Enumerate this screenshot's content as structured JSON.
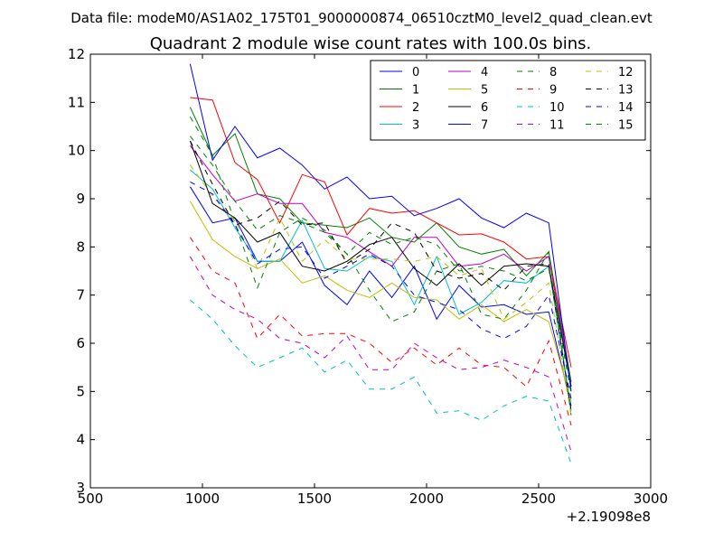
{
  "header": {
    "data_file": "Data file: modeM0/AS1A02_175T01_9000000874_06510cztM0_level2_quad_clean.evt"
  },
  "chart_data": {
    "type": "line",
    "title": "Quadrant 2 module wise count rates with 100.0s bins.",
    "xlabel": "",
    "ylabel": "",
    "xlim": [
      500,
      3000
    ],
    "ylim": [
      3,
      12
    ],
    "x_ticks": [
      500,
      1000,
      1500,
      2000,
      2500,
      3000
    ],
    "y_ticks": [
      3,
      4,
      5,
      6,
      7,
      8,
      9,
      10,
      11,
      12
    ],
    "x_tick_labels": [
      "500",
      "1000",
      "1500",
      "2000",
      "2500",
      "3000"
    ],
    "y_tick_labels": [
      "3",
      "4",
      "5",
      "6",
      "7",
      "8",
      "9",
      "10",
      "11",
      "12"
    ],
    "x_offset_label": "+2.19098e8",
    "grid": false,
    "legend_position": "top-right",
    "x": [
      945,
      1045,
      1145,
      1245,
      1345,
      1445,
      1545,
      1645,
      1745,
      1845,
      1945,
      2045,
      2145,
      2245,
      2345,
      2445,
      2545,
      2645
    ],
    "series": [
      {
        "name": "0",
        "color": "#0000ff",
        "dash": "solid",
        "values": [
          9.25,
          8.5,
          8.6,
          7.7,
          7.7,
          8.1,
          7.2,
          6.8,
          7.5,
          6.95,
          7.6,
          6.5,
          7.2,
          6.75,
          6.8,
          6.6,
          6.65,
          4.7
        ]
      },
      {
        "name": "1",
        "color": "#008000",
        "dash": "solid",
        "values": [
          10.9,
          9.9,
          10.35,
          9.1,
          9.0,
          8.5,
          8.45,
          8.4,
          8.6,
          8.2,
          8.1,
          8.5,
          8.0,
          7.85,
          7.95,
          7.4,
          7.9,
          5.2
        ]
      },
      {
        "name": "2",
        "color": "#ff0000",
        "dash": "solid",
        "values": [
          11.1,
          11.05,
          9.75,
          9.4,
          8.5,
          9.5,
          9.35,
          8.25,
          8.8,
          8.7,
          8.75,
          8.5,
          8.25,
          8.27,
          8.1,
          7.75,
          7.8,
          5.5
        ]
      },
      {
        "name": "3",
        "color": "#00bfbf",
        "dash": "solid",
        "values": [
          9.6,
          9.2,
          8.4,
          7.7,
          7.7,
          8.55,
          7.55,
          7.5,
          7.8,
          7.7,
          6.8,
          7.8,
          6.6,
          6.85,
          7.3,
          7.25,
          7.6,
          4.6
        ]
      },
      {
        "name": "4",
        "color": "#bf00bf",
        "dash": "solid",
        "values": [
          10.1,
          9.5,
          8.95,
          9.1,
          8.9,
          8.9,
          8.3,
          8.2,
          7.9,
          7.6,
          8.2,
          8.2,
          7.6,
          7.65,
          7.85,
          7.5,
          7.8,
          5.1
        ]
      },
      {
        "name": "5",
        "color": "#bfbf00",
        "dash": "solid",
        "values": [
          8.95,
          8.15,
          7.8,
          7.55,
          7.75,
          7.25,
          7.4,
          7.1,
          6.95,
          7.25,
          6.95,
          6.9,
          6.5,
          6.8,
          6.45,
          6.7,
          6.45,
          4.8
        ]
      },
      {
        "name": "6",
        "color": "#000000",
        "dash": "solid",
        "values": [
          10.2,
          8.9,
          8.6,
          8.1,
          8.3,
          7.6,
          7.5,
          7.7,
          8.05,
          8.2,
          7.55,
          7.2,
          7.65,
          7.2,
          7.6,
          7.65,
          7.6,
          5.1
        ]
      },
      {
        "name": "7",
        "color": "#0000ff",
        "dash": "solid",
        "values": [
          11.8,
          9.8,
          10.5,
          9.85,
          10.05,
          9.7,
          9.2,
          9.45,
          9.0,
          9.05,
          8.65,
          8.8,
          9.0,
          8.6,
          8.4,
          8.7,
          8.5,
          5.0
        ]
      },
      {
        "name": "8",
        "color": "#008000",
        "dash": "dashed",
        "values": [
          10.7,
          9.9,
          8.5,
          7.15,
          8.3,
          8.6,
          8.35,
          7.85,
          7.1,
          6.45,
          6.65,
          7.5,
          7.65,
          6.6,
          6.5,
          7.1,
          7.9,
          4.5
        ]
      },
      {
        "name": "9",
        "color": "#ff0000",
        "dash": "dashed",
        "values": [
          8.2,
          7.5,
          7.25,
          6.1,
          6.6,
          6.15,
          6.2,
          6.2,
          6.0,
          5.6,
          5.9,
          5.55,
          5.9,
          5.55,
          5.5,
          5.1,
          6.05,
          4.3
        ]
      },
      {
        "name": "10",
        "color": "#00bfbf",
        "dash": "dashed",
        "values": [
          6.9,
          6.5,
          5.95,
          5.5,
          5.7,
          5.9,
          5.4,
          5.65,
          5.05,
          5.05,
          5.3,
          4.55,
          4.6,
          4.4,
          4.7,
          4.9,
          4.8,
          3.5
        ]
      },
      {
        "name": "11",
        "color": "#bf00bf",
        "dash": "dashed",
        "values": [
          7.8,
          7.0,
          6.7,
          6.5,
          6.1,
          6.0,
          5.7,
          6.15,
          5.45,
          5.45,
          6.0,
          5.7,
          5.45,
          5.5,
          5.65,
          5.5,
          5.3,
          3.75
        ]
      },
      {
        "name": "12",
        "color": "#bfbf00",
        "dash": "dashed",
        "values": [
          9.7,
          9.05,
          8.55,
          7.55,
          8.6,
          7.7,
          8.15,
          7.75,
          7.75,
          7.75,
          7.7,
          7.8,
          7.4,
          7.55,
          6.5,
          6.85,
          7.25,
          4.5
        ]
      },
      {
        "name": "13",
        "color": "#000000",
        "dash": "dashed",
        "values": [
          10.2,
          9.3,
          8.45,
          8.6,
          8.95,
          8.45,
          8.5,
          7.65,
          7.95,
          8.5,
          8.3,
          7.5,
          7.35,
          7.45,
          7.1,
          7.6,
          7.65,
          4.6
        ]
      },
      {
        "name": "14",
        "color": "#0000ff",
        "dash": "dashed",
        "values": [
          9.35,
          9.1,
          8.45,
          7.65,
          7.95,
          8.0,
          7.35,
          7.6,
          7.85,
          7.6,
          7.0,
          6.85,
          6.7,
          6.3,
          6.1,
          6.35,
          7.0,
          4.85
        ]
      },
      {
        "name": "15",
        "color": "#008000",
        "dash": "dashed",
        "values": [
          10.3,
          9.7,
          8.95,
          8.35,
          8.65,
          8.5,
          8.3,
          7.85,
          8.3,
          8.05,
          8.2,
          8.05,
          7.5,
          7.6,
          7.5,
          7.3,
          7.55,
          4.95
        ]
      }
    ]
  }
}
